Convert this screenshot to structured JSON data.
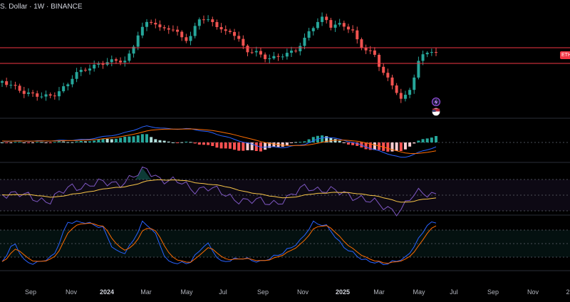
{
  "header": {
    "title": "S. Dollar · 1W · BINANCE"
  },
  "price_tag": {
    "label": "ETH"
  },
  "time_axis": [
    {
      "label": "Sep",
      "bold": false
    },
    {
      "label": "Nov",
      "bold": false
    },
    {
      "label": "2024",
      "bold": true
    },
    {
      "label": "Mar",
      "bold": false
    },
    {
      "label": "May",
      "bold": false
    },
    {
      "label": "Jul",
      "bold": false
    },
    {
      "label": "Sep",
      "bold": false
    },
    {
      "label": "Nov",
      "bold": false
    },
    {
      "label": "2025",
      "bold": true
    },
    {
      "label": "Mar",
      "bold": false
    },
    {
      "label": "May",
      "bold": false
    },
    {
      "label": "Jul",
      "bold": false
    },
    {
      "label": "Sep",
      "bold": false
    },
    {
      "label": "Nov",
      "bold": false
    },
    {
      "label": "2",
      "bold": false
    }
  ],
  "colors": {
    "background": "#000000",
    "bull": "#26a69a",
    "bear": "#ef5350",
    "level_line": "#f23645",
    "macd_line": "#2962ff",
    "signal_line": "#ff6d00",
    "rsi_line": "#7e57c2",
    "rsi_ma": "#f7c548",
    "stoch_k": "#2962ff",
    "stoch_d": "#ff6d00",
    "separator": "#787b86"
  },
  "icons": {
    "flash_icon": "lightning-badge",
    "flag_icon": "us-flag-badge"
  }
}
